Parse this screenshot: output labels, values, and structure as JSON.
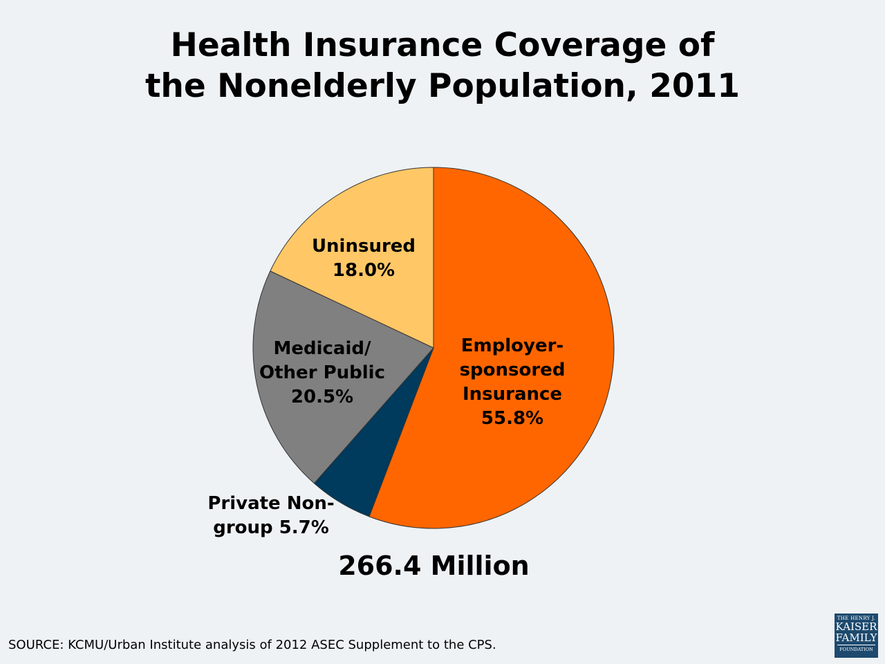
{
  "title_line1": "Health Insurance Coverage of",
  "title_line2": "the Nonelderly Population, 2011",
  "chart_data": {
    "type": "pie",
    "title": "Health Insurance Coverage of the Nonelderly Population, 2011",
    "start": "12 o'clock, clockwise",
    "slices": [
      {
        "name": "Employer-sponsored Insurance",
        "value": 55.8,
        "color": "#ff6600",
        "label_lines": [
          "Employer-",
          "sponsored",
          "Insurance",
          "55.8%"
        ]
      },
      {
        "name": "Private Non-group",
        "value": 5.7,
        "color": "#003a5c",
        "label_lines": [
          "Private Non-",
          "group 5.7%"
        ]
      },
      {
        "name": "Medicaid/Other Public",
        "value": 20.5,
        "color": "#808080",
        "label_lines": [
          "Medicaid/",
          "Other Public",
          "20.5%"
        ]
      },
      {
        "name": "Uninsured",
        "value": 18.0,
        "color": "#ffc766",
        "label_lines": [
          "Uninsured",
          "18.0%"
        ]
      }
    ],
    "total_label": "266.4 Million"
  },
  "source": "SOURCE: KCMU/Urban Institute analysis of 2012 ASEC Supplement to the CPS.",
  "logo": {
    "line1": "THE HENRY J.",
    "line2": "KAISER",
    "line3": "FAMILY",
    "line4": "FOUNDATION"
  }
}
